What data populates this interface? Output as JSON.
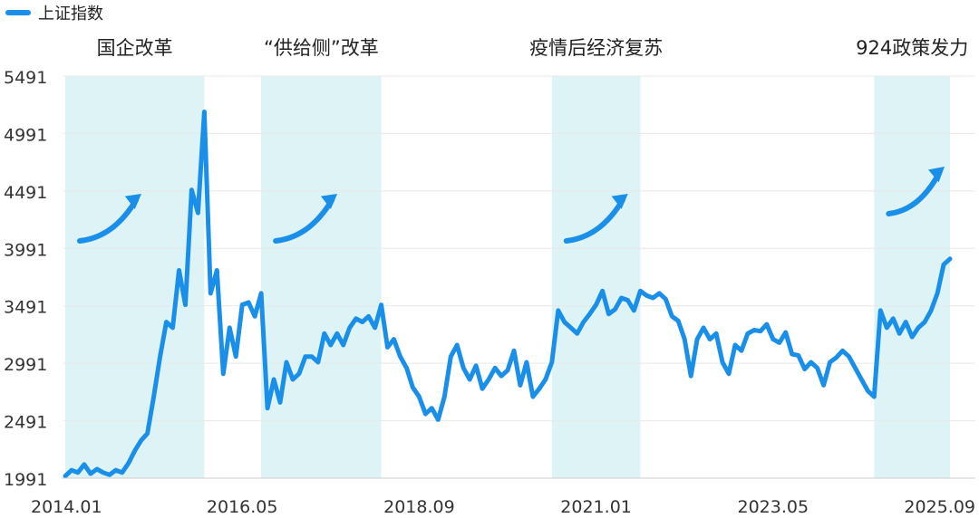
{
  "chart_data": {
    "type": "line",
    "title": "",
    "xlabel": "",
    "ylabel": "",
    "x_ticks": [
      "2014.01",
      "2016.05",
      "2018.09",
      "2021.01",
      "2023.05",
      "2025.09"
    ],
    "y_ticks": [
      1991,
      2491,
      2991,
      3491,
      3991,
      4491,
      4991,
      5491
    ],
    "ylim": [
      1991,
      5491
    ],
    "xlim": [
      "2014.01",
      "2025.09"
    ],
    "grid": true,
    "legend_position": "top-left",
    "series": [
      {
        "name": "上证指数",
        "color": "#1a8fea",
        "points": [
          [
            "2014.01",
            2010
          ],
          [
            "2014.02",
            2060
          ],
          [
            "2014.03",
            2040
          ],
          [
            "2014.04",
            2110
          ],
          [
            "2014.05",
            2030
          ],
          [
            "2014.06",
            2070
          ],
          [
            "2014.07",
            2040
          ],
          [
            "2014.08",
            2020
          ],
          [
            "2014.09",
            2060
          ],
          [
            "2014.10",
            2040
          ],
          [
            "2014.11",
            2120
          ],
          [
            "2014.12",
            2230
          ],
          [
            "2015.01",
            2320
          ],
          [
            "2015.02",
            2380
          ],
          [
            "2015.03",
            2700
          ],
          [
            "2015.04",
            3050
          ],
          [
            "2015.05",
            3350
          ],
          [
            "2015.06",
            3300
          ],
          [
            "2015.07",
            3800
          ],
          [
            "2015.08",
            3500
          ],
          [
            "2015.09",
            4500
          ],
          [
            "2015.10",
            4300
          ],
          [
            "2015.11",
            5180
          ],
          [
            "2015.12",
            3600
          ],
          [
            "2016.01",
            3800
          ],
          [
            "2016.02",
            2900
          ],
          [
            "2016.03",
            3300
          ],
          [
            "2016.04",
            3050
          ],
          [
            "2016.05",
            3500
          ],
          [
            "2016.06",
            3520
          ],
          [
            "2016.07",
            3400
          ],
          [
            "2016.08",
            3600
          ],
          [
            "2016.09",
            2600
          ],
          [
            "2016.10",
            2850
          ],
          [
            "2016.11",
            2650
          ],
          [
            "2016.12",
            3000
          ],
          [
            "2017.01",
            2850
          ],
          [
            "2017.02",
            2900
          ],
          [
            "2017.03",
            3050
          ],
          [
            "2017.04",
            3050
          ],
          [
            "2017.05",
            3000
          ],
          [
            "2017.06",
            3250
          ],
          [
            "2017.07",
            3150
          ],
          [
            "2017.08",
            3250
          ],
          [
            "2017.09",
            3150
          ],
          [
            "2017.10",
            3300
          ],
          [
            "2017.11",
            3380
          ],
          [
            "2017.12",
            3350
          ],
          [
            "2018.01",
            3400
          ],
          [
            "2018.02",
            3300
          ],
          [
            "2018.03",
            3500
          ],
          [
            "2018.04",
            3130
          ],
          [
            "2018.05",
            3200
          ],
          [
            "2018.06",
            3050
          ],
          [
            "2018.07",
            2950
          ],
          [
            "2018.08",
            2780
          ],
          [
            "2018.09",
            2700
          ],
          [
            "2018.10",
            2550
          ],
          [
            "2018.11",
            2600
          ],
          [
            "2018.12",
            2500
          ],
          [
            "2019.01",
            2700
          ],
          [
            "2019.02",
            3050
          ],
          [
            "2019.03",
            3150
          ],
          [
            "2019.04",
            2950
          ],
          [
            "2019.05",
            2850
          ],
          [
            "2019.06",
            2970
          ],
          [
            "2019.07",
            2770
          ],
          [
            "2019.08",
            2850
          ],
          [
            "2019.09",
            2950
          ],
          [
            "2019.10",
            2880
          ],
          [
            "2019.11",
            2930
          ],
          [
            "2019.12",
            3100
          ],
          [
            "2020.01",
            2800
          ],
          [
            "2020.02",
            3000
          ],
          [
            "2020.03",
            2700
          ],
          [
            "2020.04",
            2770
          ],
          [
            "2020.05",
            2850
          ],
          [
            "2020.06",
            3000
          ],
          [
            "2020.07",
            3450
          ],
          [
            "2020.08",
            3350
          ],
          [
            "2020.09",
            3300
          ],
          [
            "2020.10",
            3250
          ],
          [
            "2020.11",
            3350
          ],
          [
            "2020.12",
            3420
          ],
          [
            "2021.01",
            3500
          ],
          [
            "2021.02",
            3620
          ],
          [
            "2021.03",
            3420
          ],
          [
            "2021.04",
            3460
          ],
          [
            "2021.05",
            3560
          ],
          [
            "2021.06",
            3540
          ],
          [
            "2021.07",
            3450
          ],
          [
            "2021.08",
            3620
          ],
          [
            "2021.09",
            3580
          ],
          [
            "2021.10",
            3560
          ],
          [
            "2021.11",
            3600
          ],
          [
            "2021.12",
            3550
          ],
          [
            "2022.01",
            3400
          ],
          [
            "2022.02",
            3360
          ],
          [
            "2022.03",
            3200
          ],
          [
            "2022.04",
            2880
          ],
          [
            "2022.05",
            3200
          ],
          [
            "2022.06",
            3300
          ],
          [
            "2022.07",
            3200
          ],
          [
            "2022.08",
            3250
          ],
          [
            "2022.09",
            3000
          ],
          [
            "2022.10",
            2900
          ],
          [
            "2022.11",
            3150
          ],
          [
            "2022.12",
            3100
          ],
          [
            "2023.01",
            3250
          ],
          [
            "2023.02",
            3280
          ],
          [
            "2023.03",
            3270
          ],
          [
            "2023.04",
            3330
          ],
          [
            "2023.05",
            3200
          ],
          [
            "2023.06",
            3170
          ],
          [
            "2023.07",
            3260
          ],
          [
            "2023.08",
            3070
          ],
          [
            "2023.09",
            3060
          ],
          [
            "2023.10",
            2940
          ],
          [
            "2023.11",
            3000
          ],
          [
            "2023.12",
            2950
          ],
          [
            "2024.01",
            2800
          ],
          [
            "2024.02",
            3000
          ],
          [
            "2024.03",
            3040
          ],
          [
            "2024.04",
            3100
          ],
          [
            "2024.05",
            3050
          ],
          [
            "2024.06",
            2950
          ],
          [
            "2024.07",
            2850
          ],
          [
            "2024.08",
            2750
          ],
          [
            "2024.09",
            2700
          ],
          [
            "2024.10",
            3450
          ],
          [
            "2024.11",
            3300
          ],
          [
            "2024.12",
            3380
          ],
          [
            "2025.01",
            3250
          ],
          [
            "2025.02",
            3350
          ],
          [
            "2025.03",
            3220
          ],
          [
            "2025.04",
            3300
          ],
          [
            "2025.05",
            3350
          ],
          [
            "2025.06",
            3450
          ],
          [
            "2025.07",
            3600
          ],
          [
            "2025.08",
            3850
          ],
          [
            "2025.09",
            3900
          ]
        ]
      }
    ],
    "annotations": [
      {
        "label": "国企改革",
        "start": "2014.01",
        "end": "2015.11"
      },
      {
        "label": "“供给侧”改革",
        "start": "2016.08",
        "end": "2018.03"
      },
      {
        "label": "疫情后经济复苏",
        "start": "2020.06",
        "end": "2021.08"
      },
      {
        "label": "924政策发力",
        "start": "2024.09",
        "end": "2025.09"
      }
    ],
    "colors": {
      "line": "#1a8fea",
      "shade": "#ddf3f6",
      "arrow": "#1a8fea",
      "grid": "#e8e8e8",
      "axis_text": "#333333"
    }
  }
}
